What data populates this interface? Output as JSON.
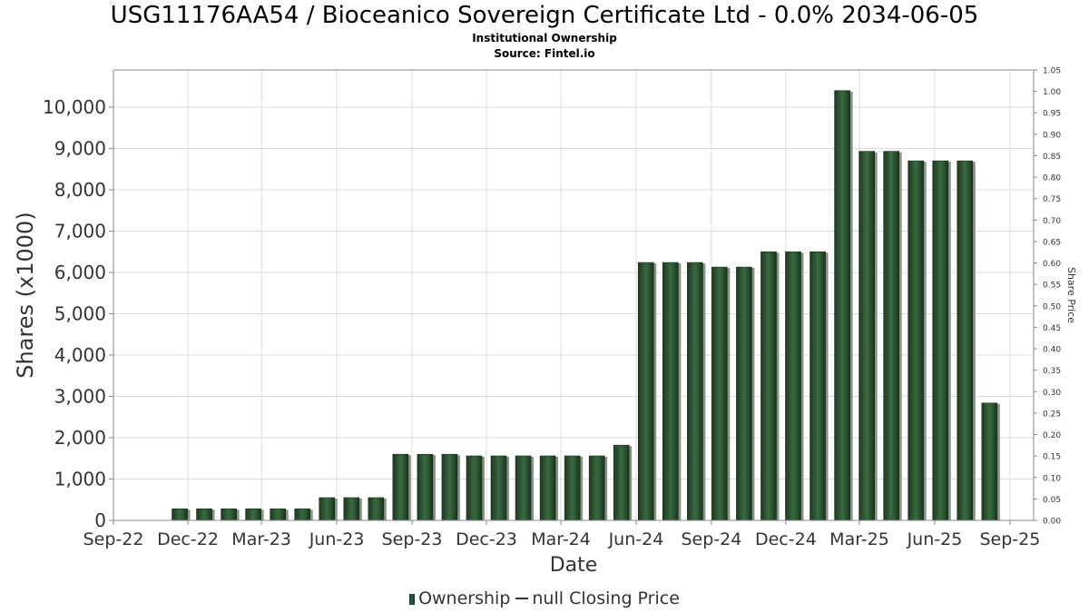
{
  "header": {
    "title": "USG11176AA54 / Bioceanico Sovereign Certificate Ltd - 0.0% 2034-06-05",
    "subtitle": "Institutional Ownership",
    "source": "Source: Fintel.io"
  },
  "legend": {
    "ownership_label": "Ownership",
    "price_label": "null Closing Price"
  },
  "chart_data": {
    "type": "bar",
    "xlabel": "Date",
    "ylabel": "Shares (x1000)",
    "y2label": "Share Price",
    "ylim": [
      0,
      10900
    ],
    "y2lim": [
      0,
      1.05
    ],
    "yticks": [
      "0",
      "1,000",
      "2,000",
      "3,000",
      "4,000",
      "5,000",
      "6,000",
      "7,000",
      "8,000",
      "9,000",
      "10,000"
    ],
    "y2ticks": [
      "0.00",
      "0.05",
      "0.10",
      "0.15",
      "0.20",
      "0.25",
      "0.30",
      "0.35",
      "0.40",
      "0.45",
      "0.50",
      "0.55",
      "0.60",
      "0.65",
      "0.70",
      "0.75",
      "0.80",
      "0.85",
      "0.90",
      "0.95",
      "1.00",
      "1.05"
    ],
    "xlim": [
      "2022-09-01",
      "2025-09-30"
    ],
    "xticks": [
      {
        "label": "Sep-22",
        "date": "2022-09-01"
      },
      {
        "label": "Dec-22",
        "date": "2022-12-01"
      },
      {
        "label": "Mar-23",
        "date": "2023-03-01"
      },
      {
        "label": "Jun-23",
        "date": "2023-06-01"
      },
      {
        "label": "Sep-23",
        "date": "2023-09-01"
      },
      {
        "label": "Dec-23",
        "date": "2023-12-01"
      },
      {
        "label": "Mar-24",
        "date": "2024-03-01"
      },
      {
        "label": "Jun-24",
        "date": "2024-06-01"
      },
      {
        "label": "Sep-24",
        "date": "2024-09-01"
      },
      {
        "label": "Dec-24",
        "date": "2024-12-01"
      },
      {
        "label": "Mar-25",
        "date": "2025-03-01"
      },
      {
        "label": "Jun-25",
        "date": "2025-06-01"
      },
      {
        "label": "Sep-25",
        "date": "2025-09-01"
      }
    ],
    "grid": true,
    "legend_position": "bottom",
    "bar_color": "#2b4f30",
    "series": [
      {
        "name": "Ownership",
        "points": [
          {
            "date": "2022-11-21",
            "value": 280
          },
          {
            "date": "2022-12-21",
            "value": 280
          },
          {
            "date": "2023-01-20",
            "value": 280
          },
          {
            "date": "2023-02-19",
            "value": 280
          },
          {
            "date": "2023-03-21",
            "value": 280
          },
          {
            "date": "2023-04-20",
            "value": 280
          },
          {
            "date": "2023-05-20",
            "value": 550
          },
          {
            "date": "2023-06-19",
            "value": 550
          },
          {
            "date": "2023-07-19",
            "value": 550
          },
          {
            "date": "2023-08-18",
            "value": 1600
          },
          {
            "date": "2023-09-17",
            "value": 1600
          },
          {
            "date": "2023-10-17",
            "value": 1600
          },
          {
            "date": "2023-11-16",
            "value": 1560
          },
          {
            "date": "2023-12-16",
            "value": 1560
          },
          {
            "date": "2024-01-15",
            "value": 1560
          },
          {
            "date": "2024-02-14",
            "value": 1560
          },
          {
            "date": "2024-03-15",
            "value": 1560
          },
          {
            "date": "2024-04-14",
            "value": 1560
          },
          {
            "date": "2024-05-14",
            "value": 1820
          },
          {
            "date": "2024-06-13",
            "value": 6240
          },
          {
            "date": "2024-07-13",
            "value": 6240
          },
          {
            "date": "2024-08-12",
            "value": 6240
          },
          {
            "date": "2024-09-11",
            "value": 6130
          },
          {
            "date": "2024-10-11",
            "value": 6130
          },
          {
            "date": "2024-11-10",
            "value": 6500
          },
          {
            "date": "2024-12-10",
            "value": 6500
          },
          {
            "date": "2025-01-09",
            "value": 6500
          },
          {
            "date": "2025-02-08",
            "value": 10400
          },
          {
            "date": "2025-03-10",
            "value": 8930
          },
          {
            "date": "2025-04-09",
            "value": 8930
          },
          {
            "date": "2025-05-09",
            "value": 8700
          },
          {
            "date": "2025-06-08",
            "value": 8700
          },
          {
            "date": "2025-07-08",
            "value": 8700
          },
          {
            "date": "2025-08-07",
            "value": 2840
          }
        ]
      }
    ]
  }
}
